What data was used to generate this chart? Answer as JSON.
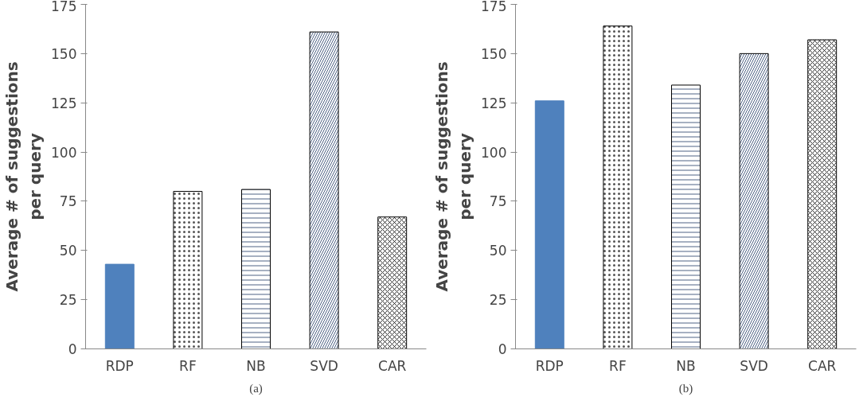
{
  "chart_data": [
    {
      "type": "bar",
      "ylabel": "Average # of suggestions\nper query",
      "categories": [
        "RDP",
        "RF",
        "NB",
        "SVD",
        "CAR"
      ],
      "values": [
        43,
        80,
        81,
        161,
        67
      ],
      "colors": [
        "#4f81bd",
        "#ffffff",
        "#ffffff",
        "#ffffff",
        "#ffffff"
      ],
      "ylim": [
        0,
        175
      ],
      "yticks": [
        0,
        25,
        50,
        75,
        100,
        125,
        150,
        175
      ],
      "annotations": [
        "(a)"
      ]
    },
    {
      "type": "bar",
      "ylabel": "Average # of suggestions\nper query",
      "categories": [
        "RDP",
        "RF",
        "NB",
        "SVD",
        "CAR"
      ],
      "values": [
        126,
        164,
        134,
        150,
        157
      ],
      "colors": [
        "#4f81bd",
        "#ffffff",
        "#ffffff",
        "#ffffff",
        "#ffffff"
      ],
      "ylim": [
        0,
        175
      ],
      "yticks": [
        0,
        25,
        50,
        75,
        100,
        125,
        150,
        175
      ],
      "annotations": [
        "(b)"
      ]
    }
  ]
}
